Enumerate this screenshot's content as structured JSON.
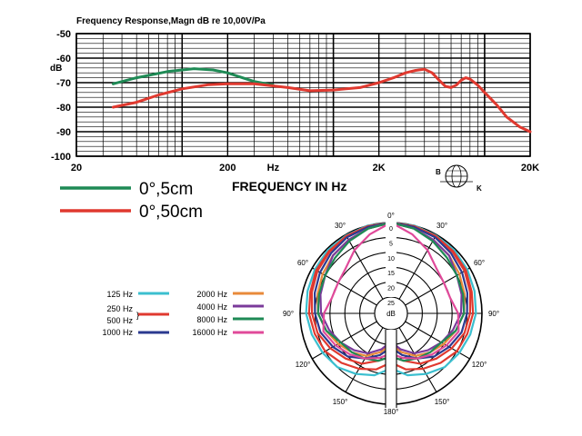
{
  "chart_data": [
    {
      "type": "line",
      "title": "Frequency Response,Magn dB re 10,00V/Pa",
      "xlabel": "FREQUENCY IN Hz",
      "ylabel": "dB",
      "x_scale": "log",
      "xlim": [
        20,
        20000
      ],
      "ylim": [
        -100,
        -50
      ],
      "grid": true,
      "x_tick_labels": [
        {
          "value": 20,
          "label": "20"
        },
        {
          "value": 200,
          "label": "200"
        },
        {
          "value": 400,
          "label": "Hz"
        },
        {
          "value": 2000,
          "label": "2K"
        },
        {
          "value": 20000,
          "label": "20K"
        }
      ],
      "y_ticks": [
        -50,
        -60,
        -70,
        -80,
        -90,
        -100
      ],
      "legend_placement": "below",
      "series": [
        {
          "name": "0°,5cm",
          "color": "#1e8a55",
          "x": [
            35,
            50,
            80,
            120,
            160,
            200,
            250,
            300,
            350,
            400
          ],
          "y": [
            -70.5,
            -68,
            -65.5,
            -64.3,
            -64.8,
            -66,
            -68,
            -69.5,
            -70.3,
            -71
          ]
        },
        {
          "name": "0°,50cm",
          "color": "#e0392f",
          "x": [
            35,
            50,
            70,
            100,
            150,
            200,
            300,
            500,
            700,
            1000,
            1500,
            2000,
            2500,
            3000,
            3500,
            4000,
            4500,
            5000,
            5500,
            6000,
            6500,
            7000,
            7500,
            8000,
            9000,
            10000,
            12000,
            14000,
            17000,
            20000
          ],
          "y": [
            -80,
            -78,
            -75,
            -72.5,
            -70.8,
            -70.5,
            -70.5,
            -72,
            -73.3,
            -73,
            -72,
            -70,
            -68,
            -66,
            -65,
            -64.5,
            -66,
            -69,
            -71.5,
            -72,
            -71,
            -69,
            -68,
            -68.5,
            -71,
            -74,
            -79,
            -84,
            -88,
            -90
          ]
        }
      ]
    },
    {
      "type": "polar",
      "center_label": "dB",
      "top_label": "0°",
      "radial_ticks": [
        "0",
        "5",
        "10",
        "15",
        "20",
        "25"
      ],
      "angle_labels": {
        "a0": "0°",
        "a30r": "30°",
        "a60r": "60°",
        "a90r": "90°",
        "a120r": "120°",
        "a150r": "150°",
        "a180": "180°",
        "a150l": "150°",
        "a120l": "120°",
        "a90l": "90°",
        "a60l": "60°",
        "a30l": "30°"
      },
      "legend_placement": "left",
      "series": [
        {
          "name": "125 Hz",
          "color": "#3bbfcf",
          "angles": [
            0,
            15,
            30,
            45,
            60,
            75,
            90,
            105,
            120,
            135,
            150,
            165,
            180
          ],
          "attenuation_db": [
            0,
            0,
            0.3,
            0.5,
            1,
            1.5,
            2,
            3,
            4,
            5,
            7,
            9,
            12
          ]
        },
        {
          "name": "250 Hz",
          "color": "#e0392f",
          "angles": [
            0,
            15,
            30,
            45,
            60,
            75,
            90,
            105,
            120,
            135,
            150,
            165,
            180
          ],
          "attenuation_db": [
            0,
            0.2,
            0.5,
            1,
            1.5,
            2.5,
            3,
            4,
            5,
            7,
            9,
            11,
            14
          ]
        },
        {
          "name": "500 Hz",
          "color": "#e0392f",
          "angles": [
            0,
            15,
            30,
            45,
            60,
            75,
            90,
            105,
            120,
            135,
            150,
            165,
            180
          ],
          "attenuation_db": [
            0,
            0.3,
            0.8,
            1.3,
            2,
            3,
            4,
            5,
            7,
            9,
            11,
            14,
            16
          ]
        },
        {
          "name": "1000 Hz",
          "color": "#2b3a8f",
          "angles": [
            0,
            15,
            30,
            45,
            60,
            75,
            90,
            105,
            120,
            135,
            150,
            165,
            180
          ],
          "attenuation_db": [
            0,
            0.5,
            1,
            2,
            3,
            4,
            5,
            6,
            8,
            10,
            13,
            16,
            19
          ]
        },
        {
          "name": "2000 Hz",
          "color": "#e88a3a",
          "angles": [
            0,
            15,
            30,
            45,
            60,
            75,
            90,
            105,
            120,
            135,
            150,
            165,
            180
          ],
          "attenuation_db": [
            0,
            1,
            2,
            3,
            4,
            5,
            6,
            8,
            10,
            12,
            14,
            17,
            20
          ]
        },
        {
          "name": "4000 Hz",
          "color": "#7a3a9a",
          "angles": [
            0,
            15,
            30,
            45,
            60,
            75,
            90,
            105,
            120,
            135,
            150,
            165,
            180
          ],
          "attenuation_db": [
            0,
            1,
            2,
            3,
            5,
            6,
            7,
            9,
            11,
            13,
            15,
            18,
            21
          ]
        },
        {
          "name": "8000 Hz",
          "color": "#1e8a55",
          "angles": [
            0,
            15,
            30,
            45,
            60,
            75,
            90,
            105,
            120,
            135,
            150,
            165,
            180
          ],
          "attenuation_db": [
            0,
            1,
            2.5,
            4,
            5,
            5.5,
            6,
            8,
            11,
            12,
            13,
            14,
            16
          ]
        },
        {
          "name": "16000 Hz",
          "color": "#e04a9a",
          "angles": [
            0,
            15,
            30,
            45,
            60,
            75,
            90,
            105,
            120,
            135,
            150,
            165,
            180
          ],
          "attenuation_db": [
            0,
            3,
            6,
            9,
            10,
            10,
            8,
            7,
            9,
            11,
            13,
            15,
            17
          ]
        }
      ]
    }
  ],
  "logo": {
    "letters": [
      "B",
      "K"
    ],
    "icon": "globe-logo-icon"
  }
}
